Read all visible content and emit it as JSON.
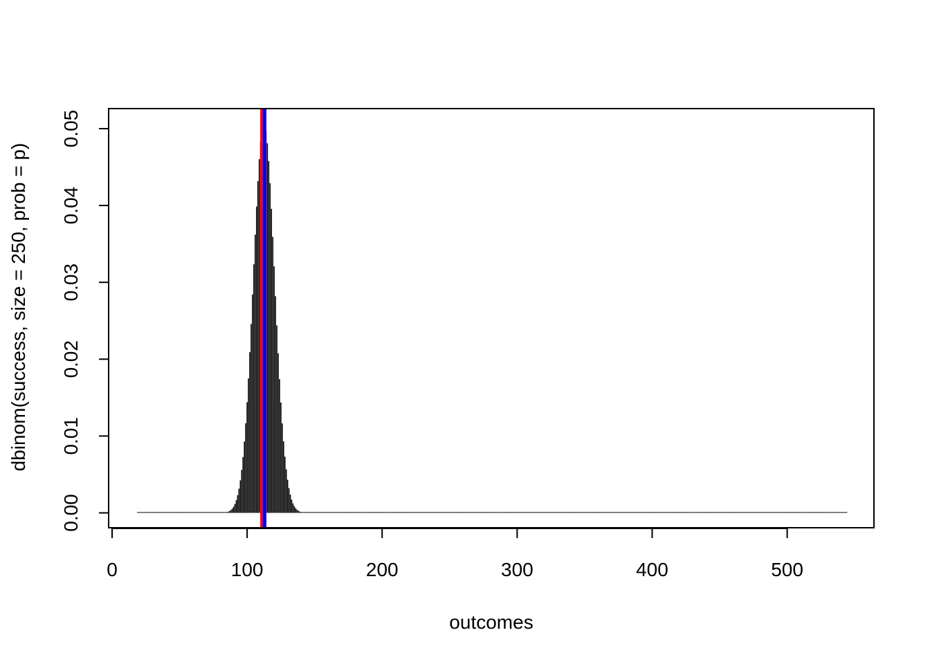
{
  "chart_data": {
    "type": "bar",
    "style": "histogram-spikes",
    "title": "",
    "xlabel": "outcomes",
    "ylabel": "dbinom(success, size = 250, prob = p)",
    "xlim": [
      0,
      565
    ],
    "ylim": [
      -0.002,
      0.0525
    ],
    "x_ticks": [
      0,
      100,
      200,
      300,
      400,
      500
    ],
    "x_tick_labels": [
      "0",
      "100",
      "200",
      "300",
      "400",
      "500"
    ],
    "y_ticks": [
      0.0,
      0.01,
      0.02,
      0.03,
      0.04,
      0.05
    ],
    "y_tick_labels": [
      "0.00",
      "0.01",
      "0.02",
      "0.03",
      "0.04",
      "0.05"
    ],
    "grid": false,
    "legend": "none",
    "series": [
      {
        "distribution": "binomial",
        "size": 250,
        "prob": 0.45,
        "x_range": [
          19,
          544
        ],
        "color": "#000000"
      }
    ],
    "reference_lines": [
      {
        "orientation": "vertical",
        "x": 111,
        "color": "#ff0000"
      },
      {
        "orientation": "vertical",
        "x": 113,
        "color": "#0000ff"
      }
    ]
  }
}
